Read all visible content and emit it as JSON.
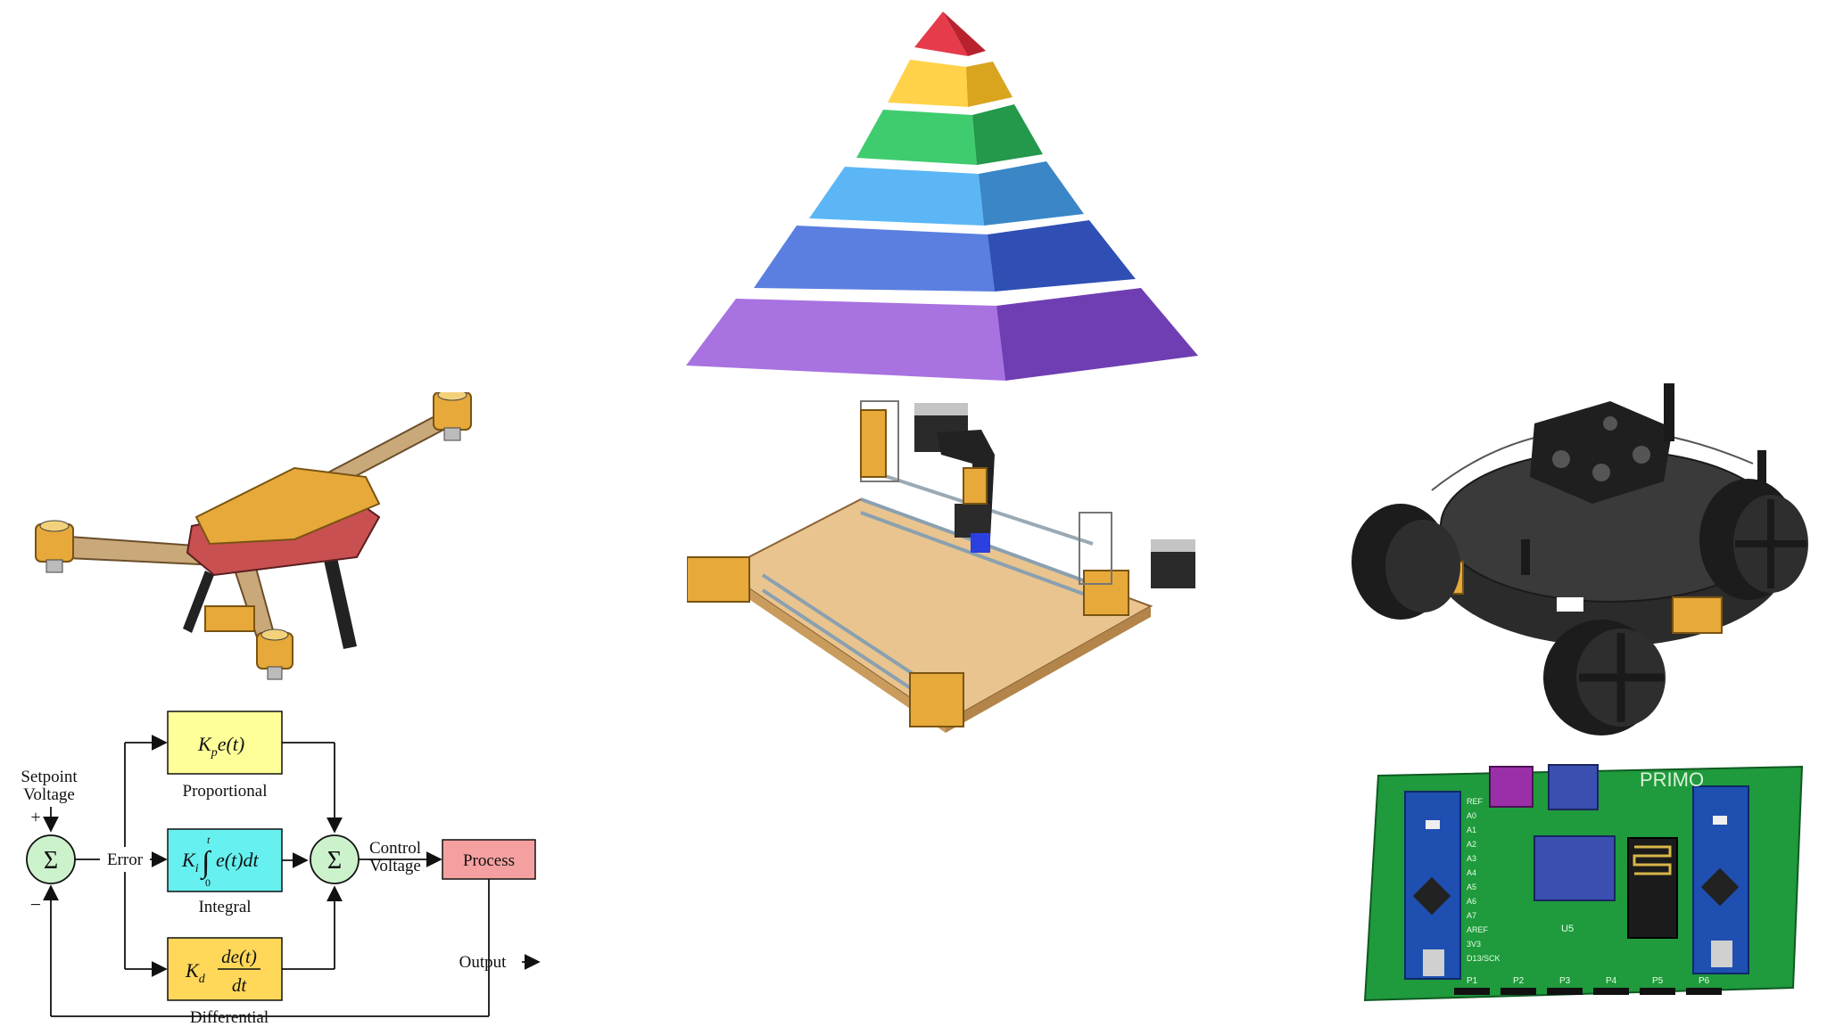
{
  "pid": {
    "setpoint_line1": "Setpoint",
    "setpoint_line2": "Voltage",
    "plus": "+",
    "minus": "−",
    "sigma": "Σ",
    "error": "Error",
    "control_line1": "Control",
    "control_line2": "Voltage",
    "process": "Process",
    "output": "Output",
    "proportional_label": "Proportional",
    "integral_label": "Integral",
    "differential_label": "Differential",
    "kp_expr": "K",
    "kp_sub": "p",
    "kp_rest": "e(t)",
    "ki_expr": "K",
    "ki_sub": "i",
    "ki_rest": "e(t)dt",
    "int_upper": "t",
    "int_lower": "0",
    "kd_expr": "K",
    "kd_sub": "d",
    "kd_num": "de(t)",
    "kd_den": "dt"
  },
  "board": {
    "brand": "PRIMO",
    "pins_left": [
      "REF",
      "A0",
      "A1",
      "A2",
      "A3",
      "A4",
      "A5",
      "A6",
      "A7",
      "AREF",
      "3V3",
      "D13/SCK"
    ],
    "headers": [
      "P1",
      "P2",
      "P3",
      "P4",
      "P5",
      "P6"
    ],
    "chip_label": "U5"
  },
  "colors": {
    "pyramid": [
      "#e53b4b",
      "#ffd24a",
      "#3fcc6f",
      "#5cb6f5",
      "#5b7fe0",
      "#a872e0"
    ],
    "part_orange": "#e6a93a",
    "pcb_green": "#1f9a3c",
    "proportional_fill": "#ffff99",
    "integral_fill": "#66f0f0",
    "differential_fill": "#ffd85a",
    "sum_fill": "#ccf2cc",
    "process_fill": "#f4a0a0"
  }
}
